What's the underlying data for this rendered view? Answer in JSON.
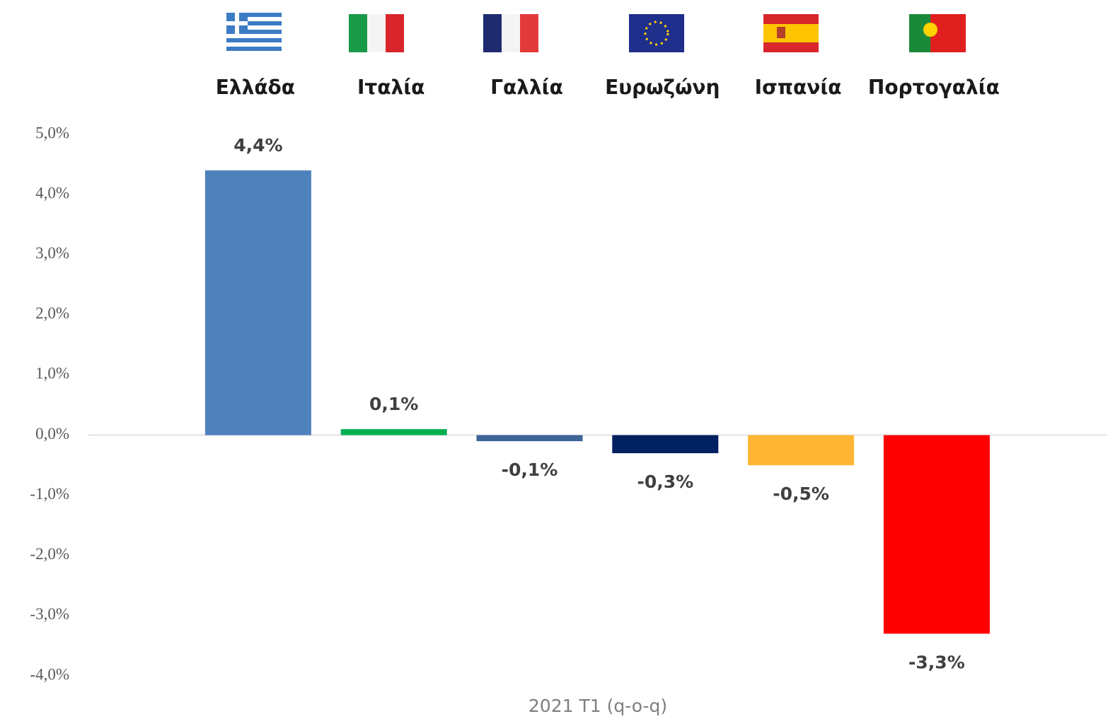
{
  "chart_data": {
    "type": "bar",
    "categories": [
      "Ελλάδα",
      "Ιταλία",
      "Γαλλία",
      "Ευρωζώνη",
      "Ισπανία",
      "Πορτογαλία"
    ],
    "values": [
      4.4,
      0.1,
      -0.1,
      -0.3,
      -0.5,
      -3.3
    ],
    "value_labels": [
      "4,4%",
      "0,1%",
      "-0,1%",
      "-0,3%",
      "-0,5%",
      "-3,3%"
    ],
    "colors": [
      "#4f81bd",
      "#00b050",
      "#3d6399",
      "#002060",
      "#ffb533",
      "#ff0000"
    ],
    "x_label": "2021 T1 (q-o-q)",
    "ylim": [
      -4,
      5
    ],
    "yticks": [
      {
        "value": 5,
        "label": "5,0%"
      },
      {
        "value": 4,
        "label": "4,0%"
      },
      {
        "value": 3,
        "label": "3,0%"
      },
      {
        "value": 2,
        "label": "2,0%"
      },
      {
        "value": 1,
        "label": "1,0%"
      },
      {
        "value": 0,
        "label": "0,0%"
      },
      {
        "value": -1,
        "label": "-1,0%"
      },
      {
        "value": -2,
        "label": "-2,0%"
      },
      {
        "value": -3,
        "label": "-3,0%"
      },
      {
        "value": -4,
        "label": "-4,0%"
      }
    ],
    "grid": false
  }
}
